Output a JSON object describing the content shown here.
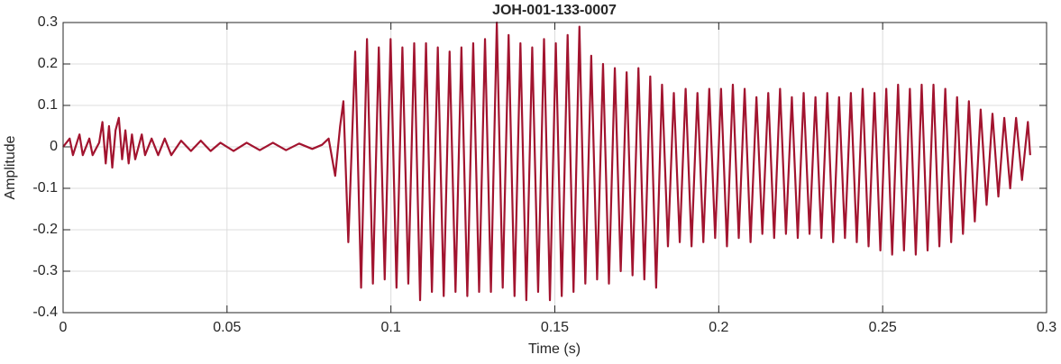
{
  "chart_data": {
    "type": "line",
    "title": "JOH-001-133-0007",
    "x_label": "Time (s)",
    "y_label": "Amplitude",
    "color": "#a2142f",
    "x": [
      0,
      0.002,
      0.003,
      0.005,
      0.006,
      0.008,
      0.009,
      0.011,
      0.012,
      0.013,
      0.014,
      0.015,
      0.016,
      0.017,
      0.018,
      0.019,
      0.02,
      0.021,
      0.022,
      0.024,
      0.025,
      0.027,
      0.029,
      0.031,
      0.033,
      0.036,
      0.039,
      0.042,
      0.045,
      0.048,
      0.052,
      0.056,
      0.06,
      0.064,
      0.068,
      0.072,
      0.076,
      0.079,
      0.081,
      0.083,
      0.0845,
      0.0855,
      0.087,
      0.0891,
      0.0909,
      0.0927,
      0.0945,
      0.0963,
      0.0981,
      0.0999,
      0.1017,
      0.1035,
      0.1053,
      0.1071,
      0.1089,
      0.1107,
      0.1125,
      0.1143,
      0.1161,
      0.1179,
      0.1197,
      0.1215,
      0.1233,
      0.1251,
      0.1269,
      0.1287,
      0.1305,
      0.1323,
      0.1341,
      0.1359,
      0.1377,
      0.1395,
      0.1413,
      0.1431,
      0.1449,
      0.1467,
      0.1485,
      0.1503,
      0.1521,
      0.1539,
      0.1557,
      0.1575,
      0.1593,
      0.1611,
      0.1629,
      0.1647,
      0.1665,
      0.1683,
      0.1701,
      0.1719,
      0.1737,
      0.1755,
      0.1773,
      0.1791,
      0.1809,
      0.1827,
      0.1845,
      0.1863,
      0.1881,
      0.1899,
      0.1917,
      0.1935,
      0.1953,
      0.1971,
      0.1989,
      0.2007,
      0.2025,
      0.2043,
      0.2061,
      0.2079,
      0.2097,
      0.2115,
      0.2133,
      0.2151,
      0.2169,
      0.2187,
      0.2205,
      0.2223,
      0.2241,
      0.2259,
      0.2277,
      0.2295,
      0.2313,
      0.2331,
      0.2349,
      0.2367,
      0.2385,
      0.2403,
      0.2421,
      0.2439,
      0.2457,
      0.2475,
      0.2493,
      0.2511,
      0.2529,
      0.2547,
      0.2565,
      0.2583,
      0.2601,
      0.2619,
      0.2637,
      0.2655,
      0.2673,
      0.2691,
      0.2709,
      0.2727,
      0.2745,
      0.2763,
      0.2781,
      0.2799,
      0.2817,
      0.2835,
      0.2853,
      0.2871,
      0.2889,
      0.2907,
      0.2925,
      0.2943,
      0.295
    ],
    "values": [
      0,
      0.02,
      -0.02,
      0.03,
      -0.02,
      0.02,
      -0.02,
      0.01,
      0.06,
      -0.04,
      0.05,
      -0.05,
      0.04,
      0.07,
      -0.03,
      0.04,
      -0.04,
      0.03,
      -0.03,
      0.03,
      -0.02,
      0.02,
      -0.02,
      0.02,
      -0.02,
      0.015,
      -0.01,
      0.015,
      -0.01,
      0.01,
      -0.01,
      0.01,
      -0.008,
      0.01,
      -0.008,
      0.008,
      -0.005,
      0.005,
      0.02,
      -0.07,
      0.05,
      0.11,
      -0.23,
      0.23,
      -0.34,
      0.26,
      -0.33,
      0.24,
      -0.32,
      0.26,
      -0.34,
      0.24,
      -0.33,
      0.25,
      -0.37,
      0.25,
      -0.35,
      0.24,
      -0.36,
      0.23,
      -0.35,
      0.24,
      -0.36,
      0.25,
      -0.35,
      0.26,
      -0.35,
      0.3,
      -0.34,
      0.27,
      -0.36,
      0.25,
      -0.37,
      0.24,
      -0.35,
      0.26,
      -0.37,
      0.25,
      -0.36,
      0.27,
      -0.35,
      0.29,
      -0.33,
      0.22,
      -0.32,
      0.2,
      -0.33,
      0.19,
      -0.3,
      0.18,
      -0.31,
      0.19,
      -0.32,
      0.17,
      -0.34,
      0.15,
      -0.24,
      0.13,
      -0.23,
      0.14,
      -0.24,
      0.13,
      -0.23,
      0.14,
      -0.22,
      0.14,
      -0.24,
      0.15,
      -0.22,
      0.14,
      -0.23,
      0.12,
      -0.21,
      0.13,
      -0.22,
      0.14,
      -0.21,
      0.12,
      -0.22,
      0.13,
      -0.21,
      0.12,
      -0.22,
      0.13,
      -0.23,
      0.12,
      -0.22,
      0.13,
      -0.23,
      0.14,
      -0.24,
      0.13,
      -0.25,
      0.14,
      -0.26,
      0.15,
      -0.25,
      0.14,
      -0.26,
      0.15,
      -0.25,
      0.15,
      -0.24,
      0.14,
      -0.23,
      0.12,
      -0.21,
      0.11,
      -0.18,
      0.09,
      -0.14,
      0.08,
      -0.12,
      0.07,
      -0.1,
      0.07,
      -0.08,
      0.06,
      -0.02
    ],
    "xlim": [
      0,
      0.3
    ],
    "xticks": [
      0,
      0.05,
      0.1,
      0.15,
      0.2,
      0.25,
      0.3
    ],
    "ylim": [
      -0.4,
      0.3
    ],
    "yticks": [
      -0.4,
      -0.3,
      -0.2,
      -0.1,
      0,
      0.1,
      0.2,
      0.3
    ],
    "grid": true
  }
}
